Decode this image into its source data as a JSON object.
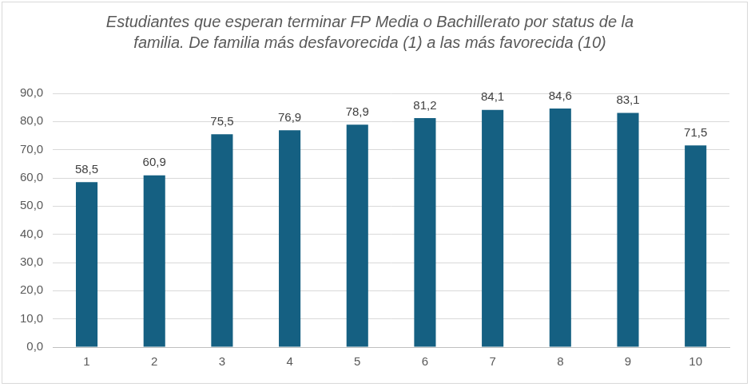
{
  "chart_data": {
    "type": "bar",
    "title": "Estudiantes que esperan terminar FP Media o Bachillerato por status de la familia. De familia más desfavorecida (1) a las más favorecida (10)",
    "categories": [
      "1",
      "2",
      "3",
      "4",
      "5",
      "6",
      "7",
      "8",
      "9",
      "10"
    ],
    "values": [
      58.5,
      60.9,
      75.5,
      76.9,
      78.9,
      81.2,
      84.1,
      84.6,
      83.1,
      71.5
    ],
    "value_labels": [
      "58,5",
      "60,9",
      "75,5",
      "76,9",
      "78,9",
      "81,2",
      "84,1",
      "84,6",
      "83,1",
      "71,5"
    ],
    "data_labels": true,
    "color": "#156082",
    "ylim": [
      0,
      90
    ],
    "yticks": [
      {
        "value": 0,
        "label": "0,0"
      },
      {
        "value": 10,
        "label": "10,0"
      },
      {
        "value": 20,
        "label": "20,0"
      },
      {
        "value": 30,
        "label": "30,0"
      },
      {
        "value": 40,
        "label": "40,0"
      },
      {
        "value": 50,
        "label": "50,0"
      },
      {
        "value": 60,
        "label": "60,0"
      },
      {
        "value": 70,
        "label": "70,0"
      },
      {
        "value": 80,
        "label": "80,0"
      },
      {
        "value": 90,
        "label": "90,0"
      }
    ],
    "grid": true
  }
}
